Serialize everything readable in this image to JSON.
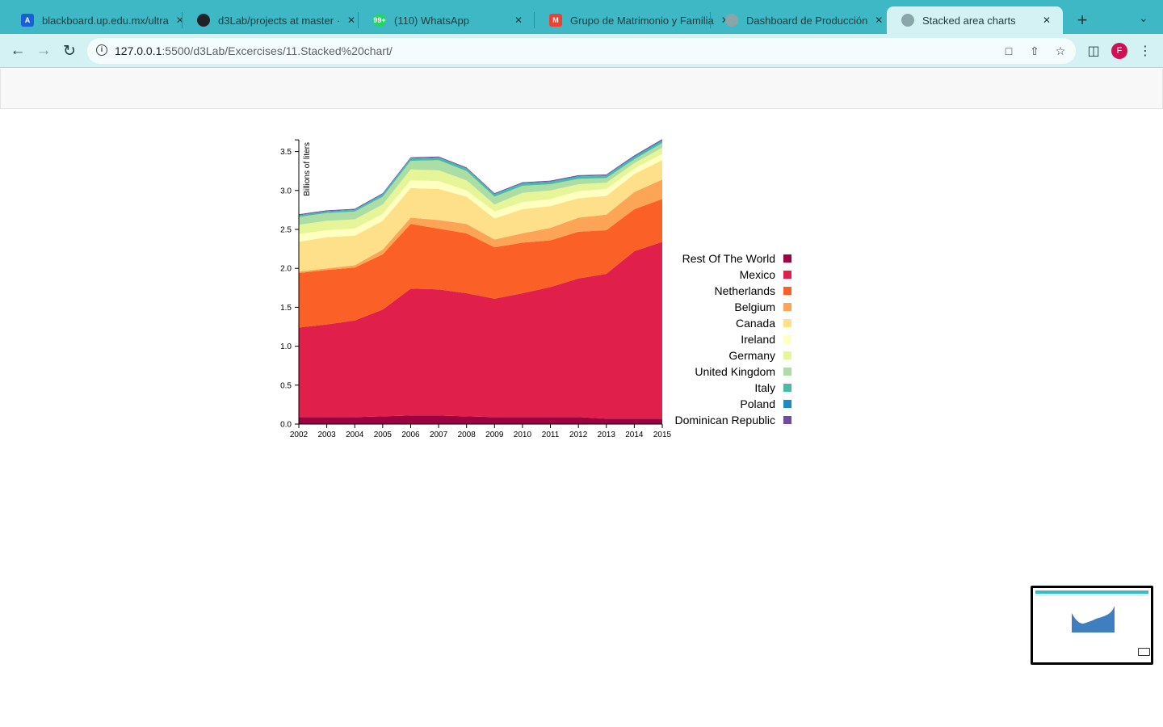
{
  "browser": {
    "tabs": [
      {
        "title": "blackboard.up.edu.mx/ultra",
        "icon": "blackboard-icon",
        "color": "#1b5fd6",
        "glyph": "A"
      },
      {
        "title": "d3Lab/projects at master · ",
        "icon": "github-icon",
        "color": "#1f2328",
        "glyph": ""
      },
      {
        "title": "(110) WhatsApp",
        "icon": "whatsapp-icon",
        "color": "#25d366",
        "glyph": "99+"
      },
      {
        "title": "Grupo de Matrimonio y Familia",
        "icon": "gmail-icon",
        "color": "#ea4335",
        "glyph": "M"
      },
      {
        "title": "Dashboard de Producción",
        "icon": "globe-icon",
        "color": "#8aa6aa",
        "glyph": ""
      },
      {
        "title": "Stacked area charts",
        "icon": "globe-icon",
        "color": "#8aa6aa",
        "glyph": "",
        "active": true
      }
    ],
    "url_host": "127.0.0.1",
    "url_rest": ":5500/d3Lab/Excercises/11.Stacked%20chart/",
    "avatar_letter": "F"
  },
  "chart_data": {
    "type": "area",
    "title": "",
    "ylabel": "Billions of liters",
    "xlabel": "",
    "x": [
      2002,
      2003,
      2004,
      2005,
      2006,
      2007,
      2008,
      2009,
      2010,
      2011,
      2012,
      2013,
      2014,
      2015
    ],
    "x_ticks": [
      "2002",
      "2003",
      "2004",
      "2005",
      "2006",
      "2007",
      "2008",
      "2009",
      "2010",
      "2011",
      "2012",
      "2013",
      "2014",
      "2015"
    ],
    "ylim": [
      0,
      3.65
    ],
    "y_ticks": [
      "0.0",
      "0.5",
      "1.0",
      "1.5",
      "2.0",
      "2.5",
      "3.0",
      "3.5"
    ],
    "legend_position": "right",
    "series": [
      {
        "name": "Rest Of The World",
        "color": "#9e0142",
        "values": [
          0.09,
          0.09,
          0.09,
          0.1,
          0.11,
          0.11,
          0.1,
          0.09,
          0.09,
          0.09,
          0.09,
          0.07,
          0.07,
          0.07
        ]
      },
      {
        "name": "Mexico",
        "color": "#e0204a",
        "values": [
          1.15,
          1.19,
          1.24,
          1.37,
          1.63,
          1.62,
          1.58,
          1.52,
          1.59,
          1.67,
          1.78,
          1.86,
          2.15,
          2.27
        ]
      },
      {
        "name": "Netherlands",
        "color": "#fb6126",
        "values": [
          0.7,
          0.7,
          0.68,
          0.71,
          0.83,
          0.78,
          0.77,
          0.66,
          0.65,
          0.6,
          0.6,
          0.56,
          0.54,
          0.55
        ]
      },
      {
        "name": "Belgium",
        "color": "#fca556",
        "values": [
          0.02,
          0.02,
          0.03,
          0.06,
          0.08,
          0.11,
          0.12,
          0.1,
          0.12,
          0.16,
          0.18,
          0.2,
          0.22,
          0.25
        ]
      },
      {
        "name": "Canada",
        "color": "#fee08b",
        "values": [
          0.38,
          0.4,
          0.38,
          0.37,
          0.38,
          0.4,
          0.35,
          0.27,
          0.31,
          0.28,
          0.25,
          0.24,
          0.23,
          0.25
        ]
      },
      {
        "name": "Ireland",
        "color": "#ffffbf",
        "values": [
          0.1,
          0.09,
          0.09,
          0.09,
          0.1,
          0.1,
          0.08,
          0.09,
          0.09,
          0.09,
          0.09,
          0.09,
          0.07,
          0.08
        ]
      },
      {
        "name": "Germany",
        "color": "#e6f598",
        "values": [
          0.12,
          0.12,
          0.12,
          0.12,
          0.14,
          0.14,
          0.13,
          0.09,
          0.12,
          0.11,
          0.09,
          0.08,
          0.07,
          0.08
        ]
      },
      {
        "name": "United Kingdom",
        "color": "#abdda4",
        "values": [
          0.1,
          0.1,
          0.1,
          0.1,
          0.11,
          0.13,
          0.12,
          0.1,
          0.09,
          0.08,
          0.07,
          0.06,
          0.05,
          0.06
        ]
      },
      {
        "name": "Italy",
        "color": "#4cb9a4",
        "values": [
          0.02,
          0.02,
          0.02,
          0.03,
          0.03,
          0.03,
          0.03,
          0.03,
          0.03,
          0.03,
          0.03,
          0.03,
          0.03,
          0.03
        ]
      },
      {
        "name": "Poland",
        "color": "#1f89c4",
        "values": [
          0.005,
          0.005,
          0.005,
          0.006,
          0.006,
          0.006,
          0.006,
          0.006,
          0.006,
          0.006,
          0.006,
          0.006,
          0.01,
          0.01
        ]
      },
      {
        "name": "Dominican Republic",
        "color": "#6f4ba2",
        "values": [
          0.01,
          0.01,
          0.01,
          0.01,
          0.01,
          0.01,
          0.01,
          0.01,
          0.01,
          0.01,
          0.01,
          0.01,
          0.01,
          0.01
        ]
      }
    ]
  }
}
